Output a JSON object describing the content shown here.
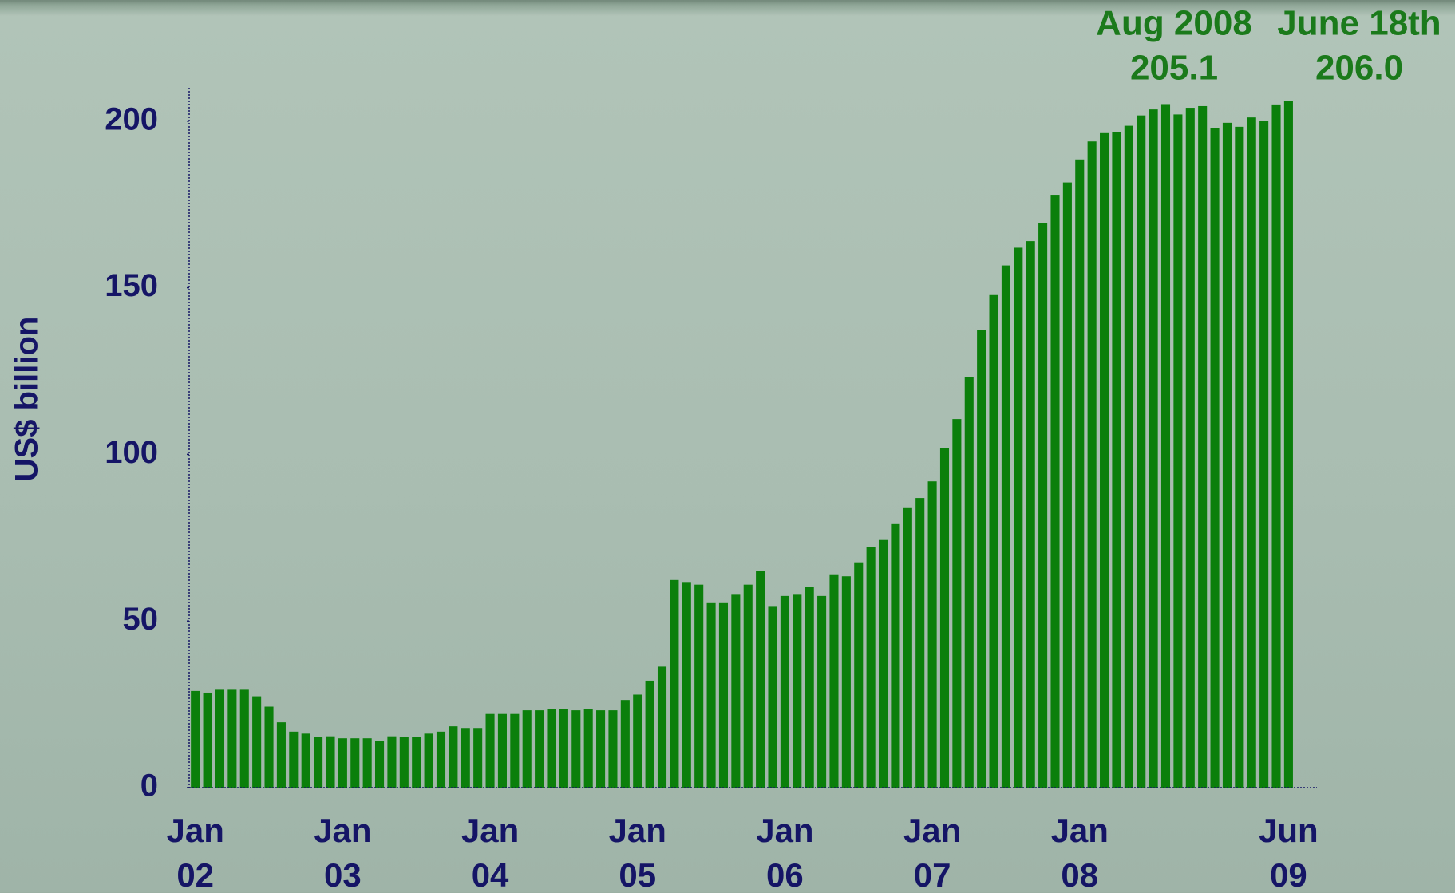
{
  "chart_data": {
    "type": "bar",
    "y_label": "US$ billion",
    "color": "#0b7f0b",
    "categories": [
      "Jan 02",
      null,
      null,
      null,
      null,
      null,
      null,
      null,
      null,
      null,
      null,
      null,
      "Jan 03",
      null,
      null,
      null,
      null,
      null,
      null,
      null,
      null,
      null,
      null,
      null,
      "Jan 04",
      null,
      null,
      null,
      null,
      null,
      null,
      null,
      null,
      null,
      null,
      null,
      "Jan 05",
      null,
      null,
      null,
      null,
      null,
      null,
      null,
      null,
      null,
      null,
      null,
      "Jan 06",
      null,
      null,
      null,
      null,
      null,
      null,
      null,
      null,
      null,
      null,
      null,
      "Jan 07",
      null,
      null,
      null,
      null,
      null,
      null,
      null,
      null,
      null,
      null,
      null,
      "Jan 08",
      null,
      null,
      null,
      null,
      null,
      null,
      null,
      null,
      null,
      null,
      null,
      null,
      null,
      null,
      null,
      null,
      "Jun 09"
    ],
    "values": [
      29.0,
      28.5,
      29.6,
      29.6,
      29.6,
      27.4,
      24.3,
      19.6,
      16.8,
      16.2,
      15.1,
      15.4,
      14.8,
      14.8,
      14.8,
      14.0,
      15.4,
      15.1,
      15.1,
      16.2,
      16.8,
      18.4,
      17.9,
      17.9,
      22.1,
      22.1,
      22.1,
      23.2,
      23.2,
      23.7,
      23.7,
      23.2,
      23.7,
      23.2,
      23.2,
      26.3,
      27.9,
      32.1,
      36.3,
      62.3,
      61.7,
      60.9,
      55.6,
      55.6,
      58.1,
      60.9,
      65.1,
      54.5,
      57.5,
      58.1,
      60.3,
      57.5,
      64.0,
      63.4,
      67.6,
      72.3,
      74.3,
      79.3,
      84.1,
      86.9,
      91.9,
      102.0,
      110.6,
      123.2,
      137.4,
      147.8,
      156.7,
      162.0,
      164.0,
      169.3,
      177.9,
      181.6,
      188.5,
      193.9,
      196.4,
      196.6,
      198.6,
      201.7,
      203.5,
      205.1,
      202.0,
      204.0,
      204.5,
      198.0,
      199.5,
      198.3,
      201.1,
      200.0,
      205.0,
      206.0
    ],
    "ylim": [
      0,
      210
    ],
    "yticks": [
      0,
      50,
      100,
      150,
      200
    ],
    "annotations": [
      {
        "text": "Aug 2008",
        "value": "205.1"
      },
      {
        "text": "June 18th",
        "value": "206.0"
      }
    ]
  }
}
